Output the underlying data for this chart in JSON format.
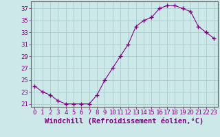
{
  "x": [
    0,
    1,
    2,
    3,
    4,
    5,
    6,
    7,
    8,
    9,
    10,
    11,
    12,
    13,
    14,
    15,
    16,
    17,
    18,
    19,
    20,
    21,
    22,
    23
  ],
  "y": [
    24.0,
    23.0,
    22.5,
    21.5,
    21.0,
    21.0,
    21.0,
    21.0,
    22.5,
    25.0,
    27.0,
    29.0,
    31.0,
    34.0,
    35.0,
    35.5,
    37.0,
    37.5,
    37.5,
    37.0,
    36.5,
    34.0,
    33.0,
    32.0
  ],
  "line_color": "#800080",
  "marker": "+",
  "bg_color": "#cce8e8",
  "grid_color": "#aacccc",
  "xlabel": "Windchill (Refroidissement éolien,°C)",
  "ylim": [
    20.5,
    38.2
  ],
  "xlim": [
    -0.5,
    23.5
  ],
  "yticks": [
    21,
    23,
    25,
    27,
    29,
    31,
    33,
    35,
    37
  ],
  "xticks": [
    0,
    1,
    2,
    3,
    4,
    5,
    6,
    7,
    8,
    9,
    10,
    11,
    12,
    13,
    14,
    15,
    16,
    17,
    18,
    19,
    20,
    21,
    22,
    23
  ],
  "line_color2": "#800080",
  "tick_color": "#800080",
  "label_fontsize": 7.5,
  "tick_fontsize": 6.5
}
